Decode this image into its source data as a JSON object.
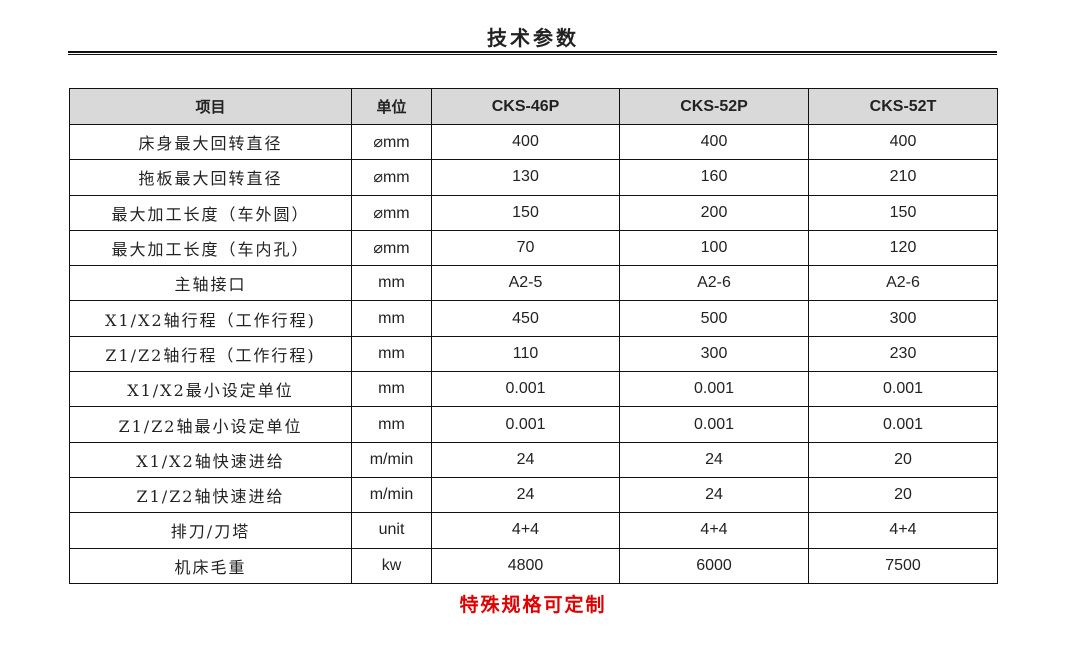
{
  "title": "技术参数",
  "table": {
    "headers": [
      "项目",
      "单位",
      "CKS-46P",
      "CKS-52P",
      "CKS-52T"
    ],
    "rows": [
      [
        "床身最大回转直径",
        "⌀mm",
        "400",
        "400",
        "400"
      ],
      [
        "拖板最大回转直径",
        "⌀mm",
        "130",
        "160",
        "210"
      ],
      [
        "最大加工长度（车外圆）",
        "⌀mm",
        "150",
        "200",
        "150"
      ],
      [
        "最大加工长度（车内孔）",
        "⌀mm",
        "70",
        "100",
        "120"
      ],
      [
        "主轴接口",
        "mm",
        "A2-5",
        "A2-6",
        "A2-6"
      ],
      [
        "X1/X2轴行程（工作行程)",
        "mm",
        "450",
        "500",
        "300"
      ],
      [
        "Z1/Z2轴行程（工作行程)",
        "mm",
        "110",
        "300",
        "230"
      ],
      [
        "X1/X2最小设定单位",
        "mm",
        "0.001",
        "0.001",
        "0.001"
      ],
      [
        "Z1/Z2轴最小设定单位",
        "mm",
        "0.001",
        "0.001",
        "0.001"
      ],
      [
        "X1/X2轴快速进给",
        "m/min",
        "24",
        "24",
        "20"
      ],
      [
        "Z1/Z2轴快速进给",
        "m/min",
        "24",
        "24",
        "20"
      ],
      [
        "排刀/刀塔",
        "unit",
        "4+4",
        "4+4",
        "4+4"
      ],
      [
        "机床毛重",
        "kw",
        "4800",
        "6000",
        "7500"
      ]
    ]
  },
  "note": "特殊规格可定制",
  "colors": {
    "header_bg": "#d9d9d9",
    "note": "#e00000"
  }
}
